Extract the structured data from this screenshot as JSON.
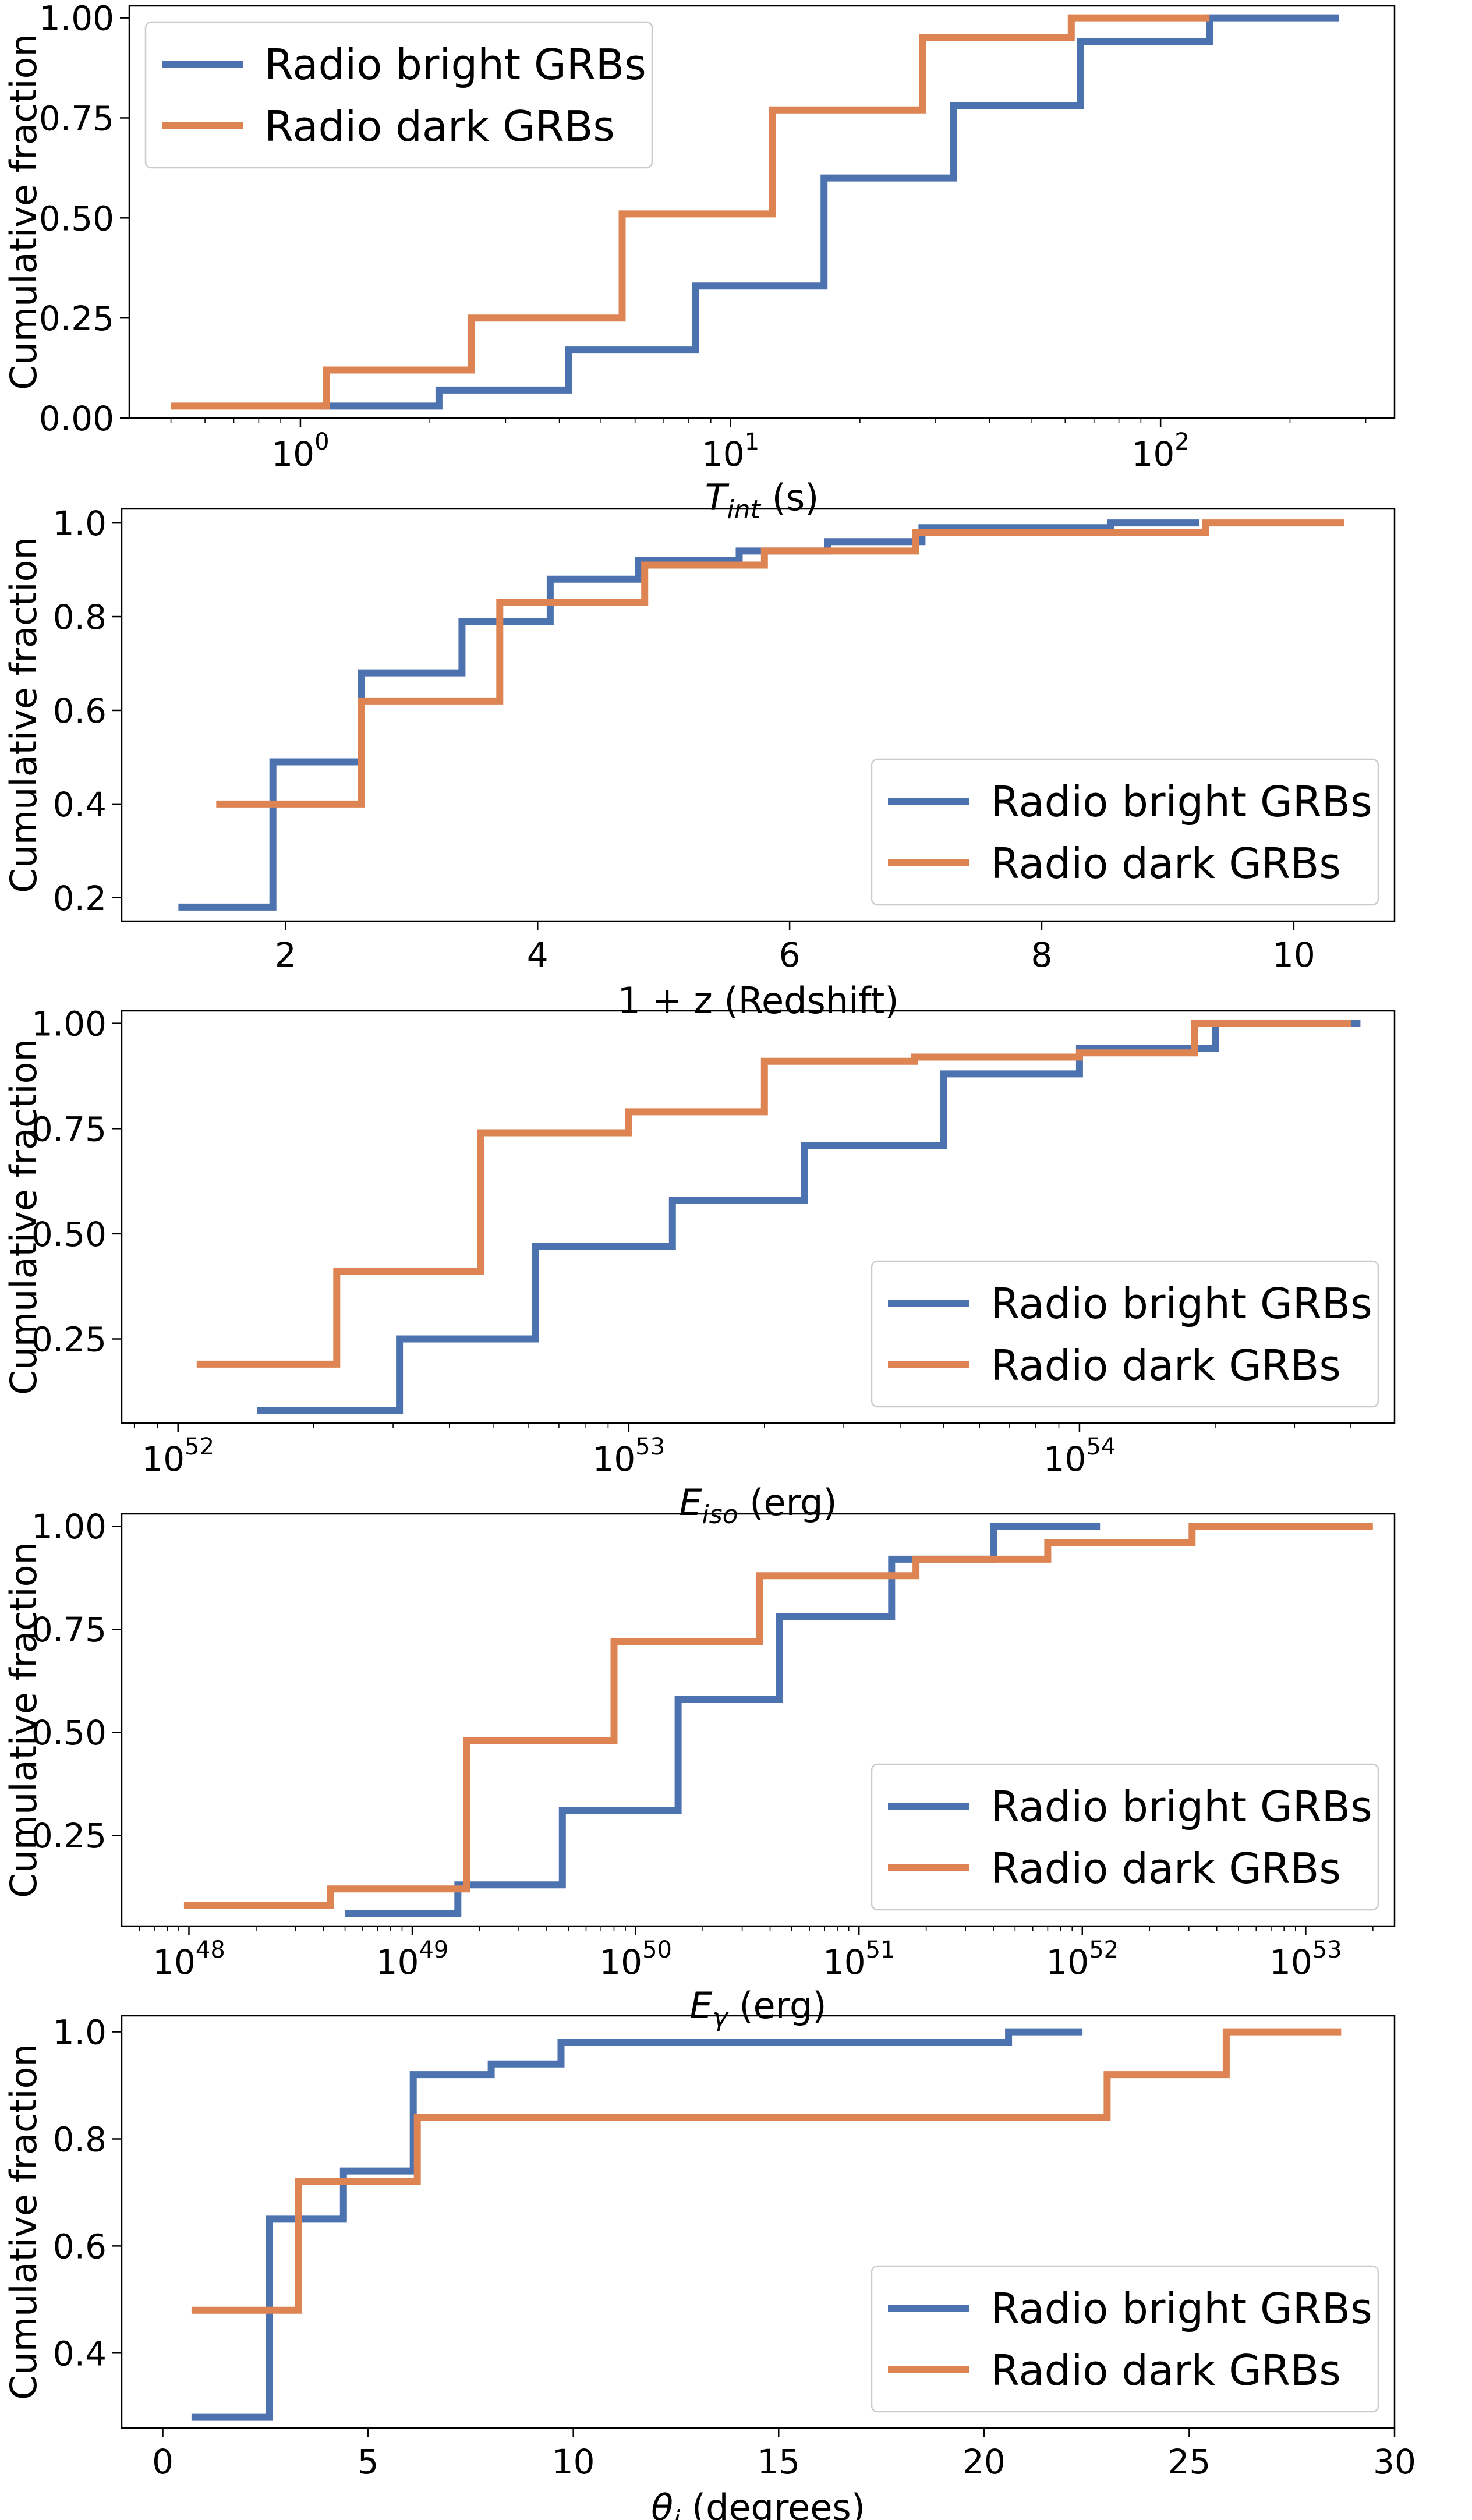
{
  "colors": {
    "bright": "#4c72b0",
    "dark": "#dd8452"
  },
  "chart_data": [
    {
      "type": "line",
      "step": true,
      "xscale": "log",
      "xlim": [
        0.4,
        350
      ],
      "ylim": [
        0.0,
        1.03
      ],
      "title": "",
      "xlabel_main": "T",
      "xlabel_sub": "int",
      "xlabel_rest": " (s)",
      "ylabel": "Cumulative fraction",
      "yticks": [
        0.0,
        0.25,
        0.5,
        0.75,
        1.0
      ],
      "yticklabels": [
        "0.00",
        "0.25",
        "0.50",
        "0.75",
        "1.00"
      ],
      "xticks": [
        1,
        10,
        100
      ],
      "xtick_bases": [
        "10",
        "10",
        "10"
      ],
      "xtick_exps": [
        "0",
        "1",
        "2"
      ],
      "legend_position": "upper-left",
      "series": [
        {
          "name": "Radio bright GRBs",
          "color_key": "bright",
          "x": [
            1.1,
            2.1,
            4.2,
            8.3,
            16.5,
            33,
            65,
            130,
            260
          ],
          "y": [
            0.03,
            0.07,
            0.17,
            0.33,
            0.6,
            0.78,
            0.94,
            1.0,
            1.0
          ]
        },
        {
          "name": "Radio dark GRBs",
          "color_key": "dark",
          "x": [
            0.5,
            1.15,
            2.5,
            5.6,
            12.5,
            28,
            62,
            130
          ],
          "y": [
            0.03,
            0.12,
            0.25,
            0.51,
            0.77,
            0.95,
            1.0,
            1.0
          ]
        }
      ]
    },
    {
      "type": "line",
      "step": true,
      "xscale": "linear",
      "xlim": [
        0.7,
        10.8
      ],
      "ylim": [
        0.15,
        1.03
      ],
      "title": "",
      "xlabel_main": "1 + z (Redshift)",
      "xlabel_sub": "",
      "xlabel_rest": "",
      "ylabel": "Cumulative fraction",
      "yticks": [
        0.2,
        0.4,
        0.6,
        0.8,
        1.0
      ],
      "yticklabels": [
        "0.2",
        "0.4",
        "0.6",
        "0.8",
        "1.0"
      ],
      "xticks": [
        2,
        4,
        6,
        8,
        10
      ],
      "xticklabels": [
        "2",
        "4",
        "6",
        "8",
        "10"
      ],
      "legend_position": "lower-right",
      "series": [
        {
          "name": "Radio bright GRBs",
          "color_key": "bright",
          "x": [
            1.15,
            1.9,
            2.6,
            3.4,
            4.1,
            4.8,
            5.6,
            6.3,
            7.05,
            8.55,
            9.25
          ],
          "y": [
            0.18,
            0.49,
            0.68,
            0.79,
            0.88,
            0.92,
            0.94,
            0.96,
            0.99,
            1.0,
            1.0
          ]
        },
        {
          "name": "Radio dark GRBs",
          "color_key": "dark",
          "x": [
            1.45,
            2.6,
            3.7,
            4.85,
            5.8,
            7.0,
            9.3,
            10.4
          ],
          "y": [
            0.4,
            0.62,
            0.83,
            0.91,
            0.94,
            0.98,
            1.0,
            1.0
          ]
        }
      ]
    },
    {
      "type": "line",
      "step": true,
      "xscale": "log",
      "xlim": [
        7.5e+51,
        5e+54
      ],
      "ylim": [
        0.05,
        1.03
      ],
      "title": "",
      "xlabel_main": "E",
      "xlabel_sub": "iso",
      "xlabel_rest": " (erg)",
      "ylabel": "Cumulative fraction",
      "yticks": [
        0.25,
        0.5,
        0.75,
        1.0
      ],
      "yticklabels": [
        "0.25",
        "0.50",
        "0.75",
        "1.00"
      ],
      "xticks": [
        1e+52,
        1e+53,
        1e+54
      ],
      "xtick_bases": [
        "10",
        "10",
        "10"
      ],
      "xtick_exps": [
        "52",
        "53",
        "54"
      ],
      "legend_position": "lower-right",
      "series": [
        {
          "name": "Radio bright GRBs",
          "color_key": "bright",
          "x": [
            1.5e+52,
            3.1e+52,
            6.2e+52,
            1.25e+53,
            2.45e+53,
            5e+53,
            1e+54,
            2e+54,
            4.2e+54
          ],
          "y": [
            0.08,
            0.25,
            0.47,
            0.58,
            0.71,
            0.88,
            0.94,
            1.0,
            1.0
          ]
        },
        {
          "name": "Radio dark GRBs",
          "color_key": "dark",
          "x": [
            1.1e+52,
            2.25e+52,
            4.7e+52,
            1e+53,
            2e+53,
            4.3e+53,
            1e+54,
            1.8e+54,
            4e+54
          ],
          "y": [
            0.19,
            0.41,
            0.74,
            0.79,
            0.91,
            0.92,
            0.93,
            1.0,
            1.0
          ]
        }
      ]
    },
    {
      "type": "line",
      "step": true,
      "xscale": "log",
      "xlim": [
        5e+47,
        2.5e+53
      ],
      "ylim": [
        0.03,
        1.03
      ],
      "title": "",
      "xlabel_main": "E",
      "xlabel_sub": "γ",
      "xlabel_rest": " (erg)",
      "ylabel": "Cumulative fraction",
      "yticks": [
        0.25,
        0.5,
        0.75,
        1.0
      ],
      "yticklabels": [
        "0.25",
        "0.50",
        "0.75",
        "1.00"
      ],
      "xticks": [
        1e+48,
        1e+49,
        1e+50,
        1e+51,
        1e+52,
        1e+53
      ],
      "xtick_bases": [
        "10",
        "10",
        "10",
        "10",
        "10",
        "10"
      ],
      "xtick_exps": [
        "48",
        "49",
        "50",
        "51",
        "52",
        "53"
      ],
      "legend_position": "lower-right",
      "series": [
        {
          "name": "Radio bright GRBs",
          "color_key": "bright",
          "x": [
            5e+48,
            1.6e+49,
            4.7e+49,
            1.55e+50,
            4.4e+50,
            1.4e+51,
            4e+51,
            1.2e+52
          ],
          "y": [
            0.06,
            0.13,
            0.31,
            0.58,
            0.78,
            0.92,
            1.0,
            1.0
          ]
        },
        {
          "name": "Radio dark GRBs",
          "color_key": "dark",
          "x": [
            9.5e+47,
            4.3e+48,
            1.75e+49,
            8e+49,
            3.6e+50,
            1.8e+51,
            7e+51,
            3.1e+52,
            2e+53
          ],
          "y": [
            0.08,
            0.12,
            0.48,
            0.72,
            0.88,
            0.92,
            0.96,
            1.0,
            1.0
          ]
        }
      ]
    },
    {
      "type": "line",
      "step": true,
      "xscale": "linear",
      "xlim": [
        -1.0,
        30.0
      ],
      "ylim": [
        0.26,
        1.03
      ],
      "title": "",
      "xlabel_main": "θ",
      "xlabel_sub": "j",
      "xlabel_rest": " (degrees)",
      "ylabel": "Cumulative fraction",
      "yticks": [
        0.4,
        0.6,
        0.8,
        1.0
      ],
      "yticklabels": [
        "0.4",
        "0.6",
        "0.8",
        "1.0"
      ],
      "xticks": [
        0,
        5,
        10,
        15,
        20,
        25,
        30
      ],
      "xticklabels": [
        "0",
        "5",
        "10",
        "15",
        "20",
        "25",
        "30"
      ],
      "legend_position": "lower-right",
      "series": [
        {
          "name": "Radio bright GRBs",
          "color_key": "bright",
          "x": [
            0.7,
            2.6,
            4.4,
            6.1,
            8.0,
            9.7,
            20.6,
            22.4
          ],
          "y": [
            0.28,
            0.65,
            0.74,
            0.92,
            0.94,
            0.98,
            1.0,
            1.0
          ]
        },
        {
          "name": "Radio dark GRBs",
          "color_key": "dark",
          "x": [
            0.7,
            3.3,
            6.2,
            23.0,
            25.9,
            28.7
          ],
          "y": [
            0.48,
            0.72,
            0.84,
            0.92,
            1.0,
            1.0
          ]
        }
      ]
    }
  ]
}
